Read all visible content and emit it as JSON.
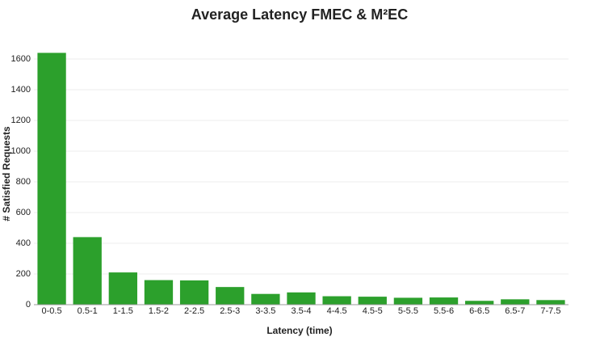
{
  "chart_data": {
    "type": "bar",
    "title": "Average Latency FMEC & M²EC",
    "x_label": "Latency (time)",
    "y_label": "# Satisfied Requests",
    "categories": [
      "0-0.5",
      "0.5-1",
      "1-1.5",
      "1.5-2",
      "2-2.5",
      "2.5-3",
      "3-3.5",
      "3.5-4",
      "4-4.5",
      "4.5-5",
      "5-5.5",
      "5.5-6",
      "6-6.5",
      "6.5-7",
      "7-7.5"
    ],
    "values": [
      1640,
      440,
      210,
      160,
      158,
      115,
      70,
      80,
      55,
      52,
      45,
      47,
      25,
      35,
      30
    ],
    "color": "#2ca02c",
    "ylim": [
      0,
      1700
    ],
    "yticks": [
      0,
      200,
      400,
      600,
      800,
      1000,
      1200,
      1400,
      1600
    ],
    "grid": true
  }
}
